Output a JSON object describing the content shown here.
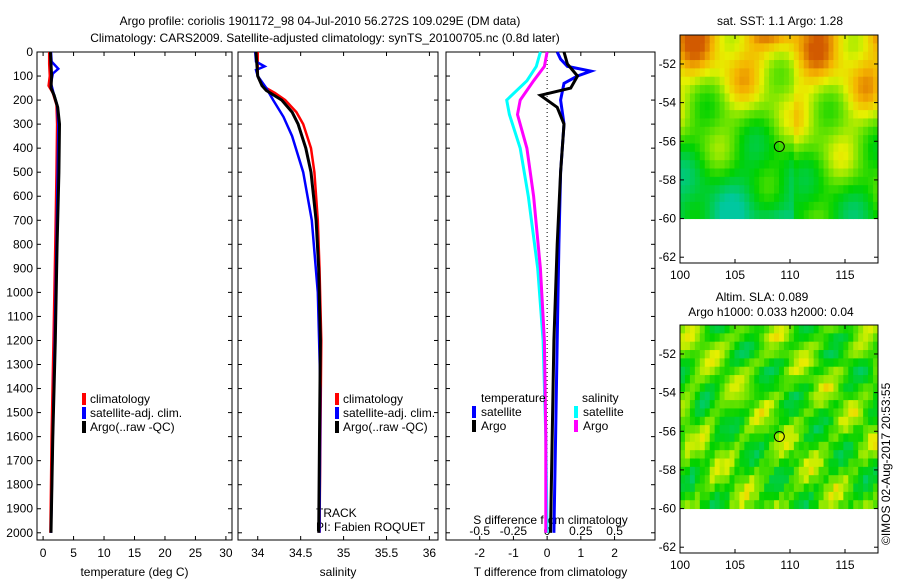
{
  "title_line1": "Argo profile: coriolis 1901172_98 04-Jul-2010 56.272S 109.029E (DM data)",
  "title_line2": "Climatology: CARS2009. Satellite-adjusted climatology: synTS_20100705.nc (0.8d later)",
  "credit": "©IMOS 02-Aug-2017 20:53:55",
  "track_label": "TRACK",
  "pi_label": "PI: Fabien ROQUET",
  "colors": {
    "climatology": "#ff0000",
    "satellite": "#0000ff",
    "argo": "#000000",
    "sal_satellite": "#00ffff",
    "sal_argo": "#ff00ff"
  },
  "chart_data": [
    {
      "type": "line",
      "name": "temperature",
      "xlabel": "temperature (deg C)",
      "xlim": [
        -1,
        31
      ],
      "ylim": [
        2030,
        0
      ],
      "xticks": [
        "0",
        "5",
        "10",
        "15",
        "20",
        "25",
        "30"
      ],
      "xtick_values": [
        0,
        5,
        10,
        15,
        20,
        25,
        30
      ],
      "yticks": [
        "0",
        "100",
        "200",
        "300",
        "400",
        "500",
        "600",
        "700",
        "800",
        "900",
        "1000",
        "1100",
        "1200",
        "1300",
        "1400",
        "1500",
        "1600",
        "1700",
        "1800",
        "1900",
        "2000"
      ],
      "legend": [
        "climatology",
        "satellite-adj. clim.",
        "Argo(..raw -QC)"
      ],
      "series": [
        {
          "name": "climatology",
          "color": "#ff0000",
          "p": [
            0,
            50,
            100,
            140,
            170,
            220,
            300,
            500,
            800,
            1200,
            1600,
            2000
          ],
          "v": [
            1.0,
            1.0,
            1.1,
            0.9,
            1.6,
            2.2,
            2.3,
            2.2,
            2.0,
            1.7,
            1.4,
            1.2
          ]
        },
        {
          "name": "satellite-adj. clim.",
          "color": "#0000ff",
          "p": [
            0,
            40,
            70,
            90,
            130,
            170,
            220,
            300,
            500,
            800,
            1200,
            1600,
            2000
          ],
          "v": [
            1.3,
            1.4,
            2.5,
            1.6,
            1.3,
            1.7,
            2.3,
            2.5,
            2.4,
            2.2,
            1.9,
            1.6,
            1.3
          ]
        },
        {
          "name": "Argo(..raw -QC)",
          "color": "#000000",
          "p": [
            0,
            50,
            100,
            150,
            180,
            230,
            300,
            500,
            800,
            1200,
            1600,
            2000
          ],
          "v": [
            1.2,
            1.3,
            1.4,
            1.3,
            1.8,
            2.4,
            2.7,
            2.6,
            2.3,
            2.0,
            1.6,
            1.3
          ]
        }
      ]
    },
    {
      "type": "line",
      "name": "salinity",
      "xlabel": "salinity",
      "xlim": [
        33.77,
        36.1
      ],
      "ylim": [
        2030,
        0
      ],
      "xticks": [
        "34",
        "34.5",
        "35",
        "35.5",
        "36"
      ],
      "xtick_values": [
        34,
        34.5,
        35,
        35.5,
        36
      ],
      "legend": [
        "climatology",
        "satellite-adj. clim.",
        "Argo(..raw -QC)"
      ],
      "series": [
        {
          "name": "climatology",
          "color": "#ff0000",
          "p": [
            0,
            100,
            140,
            170,
            200,
            250,
            300,
            400,
            500,
            700,
            900,
            1200,
            1600,
            2000
          ],
          "v": [
            34.0,
            34.0,
            34.05,
            34.2,
            34.32,
            34.45,
            34.53,
            34.62,
            34.66,
            34.7,
            34.72,
            34.74,
            34.73,
            34.72
          ]
        },
        {
          "name": "satellite-adj. clim.",
          "color": "#0000ff",
          "p": [
            0,
            40,
            60,
            75,
            100,
            150,
            200,
            270,
            350,
            500,
            700,
            1000,
            1400,
            2000
          ],
          "v": [
            33.97,
            33.98,
            34.08,
            33.98,
            34.0,
            34.1,
            34.18,
            34.3,
            34.4,
            34.53,
            34.63,
            34.7,
            34.73,
            34.72
          ]
        },
        {
          "name": "Argo(..raw -QC)",
          "color": "#000000",
          "p": [
            0,
            100,
            140,
            160,
            200,
            250,
            300,
            400,
            500,
            700,
            900,
            1200,
            1600,
            2000
          ],
          "v": [
            33.98,
            34.0,
            34.05,
            34.1,
            34.28,
            34.4,
            34.47,
            34.56,
            34.62,
            34.68,
            34.71,
            34.73,
            34.72,
            34.71
          ]
        }
      ]
    },
    {
      "type": "line",
      "name": "difference",
      "xlabel": "T difference from climatology",
      "xlabel2": "S difference from climatology",
      "xlim": [
        -3,
        3.2
      ],
      "ylim": [
        2030,
        0
      ],
      "xticks": [
        "-2",
        "-1",
        "0",
        "1",
        "2"
      ],
      "xtick_values": [
        -2,
        -1,
        0,
        1,
        2
      ],
      "xticks2": [
        "-0.5",
        "-0.25",
        "0",
        "0.25",
        "0.5"
      ],
      "xtick2_values": [
        -0.5,
        -0.25,
        0,
        0.25,
        0.5
      ],
      "legend_headers": [
        "temperature",
        "salinity"
      ],
      "legend": [
        "satellite",
        "Argo",
        "satellite",
        "Argo"
      ],
      "series": [
        {
          "name": "T satellite",
          "color": "#0000ff",
          "axis": "T",
          "p": [
            0,
            30,
            60,
            80,
            100,
            130,
            200,
            300,
            500,
            800,
            1200,
            1600,
            2000
          ],
          "v": [
            0.3,
            0.4,
            0.6,
            1.3,
            0.9,
            0.5,
            0.4,
            0.5,
            0.4,
            0.35,
            0.3,
            0.25,
            0.2
          ]
        },
        {
          "name": "T Argo",
          "color": "#000000",
          "axis": "T",
          "p": [
            0,
            50,
            100,
            150,
            180,
            230,
            300,
            500,
            800,
            1200,
            1600,
            2000
          ],
          "v": [
            0.5,
            0.6,
            0.9,
            0.7,
            -0.2,
            0.3,
            0.5,
            0.4,
            0.3,
            0.2,
            0.15,
            0.1
          ]
        },
        {
          "name": "S satellite",
          "color": "#00ffff",
          "axis": "S",
          "p": [
            0,
            60,
            120,
            200,
            260,
            400,
            600,
            900,
            1200,
            1600,
            2000
          ],
          "v": [
            -0.05,
            -0.08,
            -0.15,
            -0.3,
            -0.28,
            -0.2,
            -0.14,
            -0.07,
            -0.03,
            -0.01,
            0.0
          ]
        },
        {
          "name": "S Argo",
          "color": "#ff00ff",
          "axis": "S",
          "p": [
            0,
            60,
            120,
            200,
            260,
            400,
            600,
            900,
            1200,
            1600,
            2000
          ],
          "v": [
            0.0,
            -0.02,
            -0.1,
            -0.2,
            -0.22,
            -0.15,
            -0.1,
            -0.05,
            -0.02,
            -0.01,
            -0.01
          ]
        }
      ]
    },
    {
      "type": "heatmap",
      "name": "sst-map",
      "title": "sat. SST: 1.1 Argo: 1.28",
      "xlim": [
        100,
        118
      ],
      "ylim": [
        -62.3,
        -50.5
      ],
      "xticks": [
        "100",
        "105",
        "110",
        "115"
      ],
      "xtick_values": [
        100,
        105,
        110,
        115
      ],
      "yticks": [
        "-52",
        "-54",
        "-56",
        "-58",
        "-60",
        "-62"
      ],
      "ytick_values": [
        -52,
        -54,
        -56,
        -58,
        -60,
        -62
      ],
      "float_position": {
        "lon": 109.029,
        "lat": -56.272
      }
    },
    {
      "type": "heatmap",
      "name": "sla-map",
      "title": "Altim. SLA: 0.089",
      "subtitle": "Argo h1000: 0.033 h2000: 0.04",
      "xlim": [
        100,
        118
      ],
      "ylim": [
        -62.3,
        -50.5
      ],
      "xticks": [
        "100",
        "105",
        "110",
        "115"
      ],
      "xtick_values": [
        100,
        105,
        110,
        115
      ],
      "yticks": [
        "-52",
        "-54",
        "-56",
        "-58",
        "-60",
        "-62"
      ],
      "ytick_values": [
        -52,
        -54,
        -56,
        -58,
        -60,
        -62
      ],
      "float_position": {
        "lon": 109.029,
        "lat": -56.272
      }
    }
  ]
}
